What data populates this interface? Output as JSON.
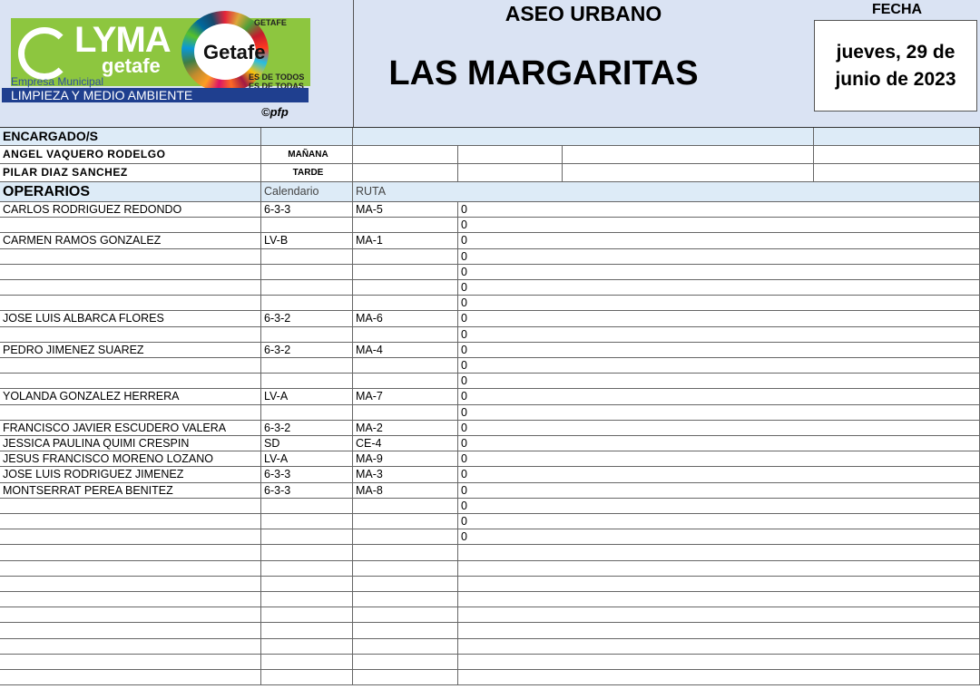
{
  "header": {
    "logo_lyma": "LYMA",
    "logo_lyma_sub": "getafe",
    "logo_getafe": "Getafe",
    "logo_slogan": "ES DE TODOS ES DE TODAS",
    "logo_ayto": "GETAFE",
    "company_sub": "Empresa Municipal",
    "company_name": "LIMPIEZA Y MEDIO AMBIENTE",
    "copyright": "©pfp",
    "service": "ASEO URBANO",
    "zone": "LAS MARGARITAS",
    "date_label": "FECHA",
    "date_value": "jueves, 29 de junio de 2023"
  },
  "encargados": {
    "label": "ENCARGADO/S",
    "rows": [
      {
        "name": "ANGEL VAQUERO RODELGO",
        "shift": "MAÑANA"
      },
      {
        "name": "PILAR DIAZ SANCHEZ",
        "shift": "TARDE"
      }
    ]
  },
  "operarios": {
    "label": "OPERARIOS",
    "col_calendar": "Calendario",
    "col_route": "RUTA",
    "rows": [
      [
        "CARLOS RODRIGUEZ REDONDO",
        "6-3-3",
        "MA-5",
        "0"
      ],
      [
        "",
        "",
        "",
        "0"
      ],
      [
        "CARMEN RAMOS GONZALEZ",
        "LV-B",
        "MA-1",
        "0"
      ],
      [
        "",
        "",
        "",
        "0"
      ],
      [
        "",
        "",
        "",
        "0"
      ],
      [
        "",
        "",
        "",
        "0"
      ],
      [
        "",
        "",
        "",
        "0"
      ],
      [
        "JOSE LUIS ALBARCA FLORES",
        "6-3-2",
        "MA-6",
        "0"
      ],
      [
        "",
        "",
        "",
        "0"
      ],
      [
        "PEDRO JIMENEZ SUAREZ",
        "6-3-2",
        "MA-4",
        "0"
      ],
      [
        "",
        "",
        "",
        "0"
      ],
      [
        "",
        "",
        "",
        "0"
      ],
      [
        "YOLANDA GONZALEZ HERRERA",
        "LV-A",
        "MA-7",
        "0"
      ],
      [
        "",
        "",
        "",
        "0"
      ],
      [
        "FRANCISCO JAVIER ESCUDERO VALERA",
        "6-3-2",
        "MA-2",
        "0"
      ],
      [
        "JESSICA PAULINA QUIMI CRESPIN",
        "SD",
        "CE-4",
        "0"
      ],
      [
        "JESUS FRANCISCO MORENO LOZANO",
        "LV-A",
        "MA-9",
        "0"
      ],
      [
        "JOSE LUIS RODRIGUEZ JIMENEZ",
        "6-3-3",
        "MA-3",
        "0"
      ],
      [
        "MONTSERRAT PEREA BENITEZ",
        "6-3-3",
        "MA-8",
        "0"
      ],
      [
        "",
        "",
        "",
        "0"
      ],
      [
        "",
        "",
        "",
        "0"
      ],
      [
        "",
        "",
        "",
        "0"
      ],
      [
        "",
        "",
        "",
        ""
      ],
      [
        "",
        "",
        "",
        ""
      ],
      [
        "",
        "",
        "",
        ""
      ],
      [
        "",
        "",
        "",
        ""
      ],
      [
        "",
        "",
        "",
        ""
      ],
      [
        "",
        "",
        "",
        ""
      ],
      [
        "",
        "",
        "",
        ""
      ],
      [
        "",
        "",
        "",
        ""
      ],
      [
        "",
        "",
        "",
        ""
      ]
    ]
  }
}
